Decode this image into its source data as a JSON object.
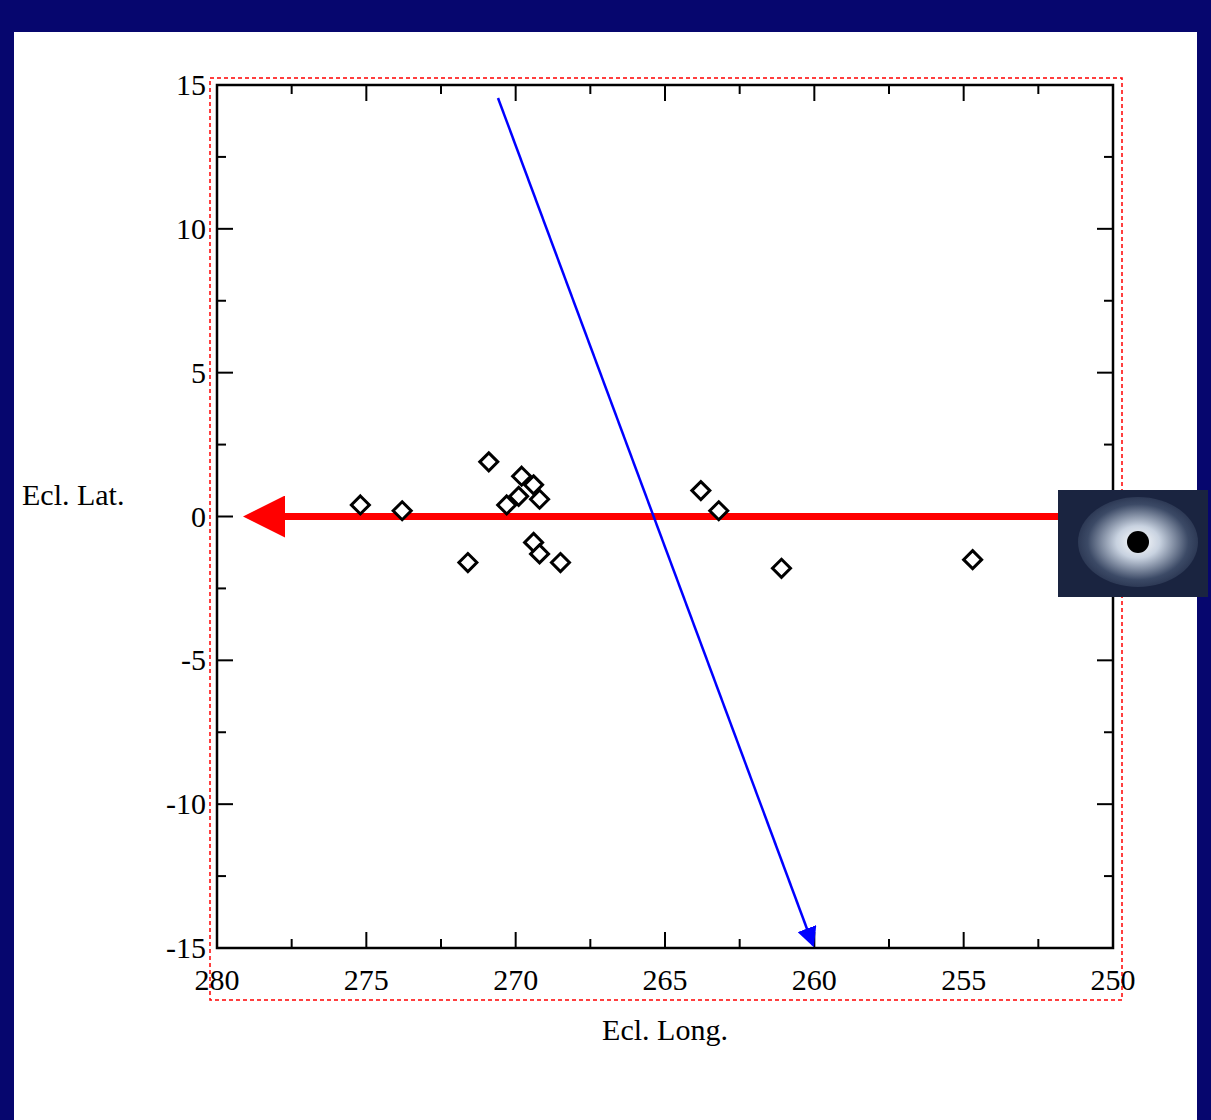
{
  "chart_data": {
    "type": "scatter",
    "x_label": "Ecl. Long.",
    "y_label": "Ecl. Lat.",
    "x": [
      275.2,
      273.8,
      271.6,
      270.9,
      270.3,
      269.8,
      269.9,
      269.4,
      269.2,
      269.4,
      269.2,
      268.5,
      263.8,
      263.2,
      261.1,
      254.7
    ],
    "values": [
      0.4,
      0.2,
      -1.6,
      1.9,
      0.4,
      1.4,
      0.7,
      1.1,
      0.6,
      -0.9,
      -1.3,
      -1.6,
      0.9,
      0.2,
      -1.8,
      -1.5
    ],
    "xlim": [
      280,
      250
    ],
    "ylim": [
      -15,
      15
    ],
    "xticks": [
      280,
      275,
      270,
      265,
      260,
      255,
      250
    ],
    "yticks": [
      -15,
      -10,
      -5,
      0,
      5,
      10,
      15
    ],
    "marker": "diamond",
    "color": "#000000",
    "grid": false
  }
}
